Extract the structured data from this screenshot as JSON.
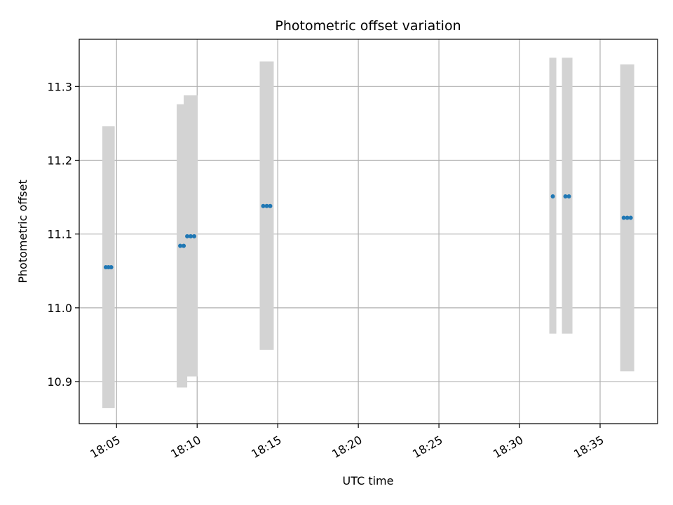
{
  "chart_data": {
    "type": "scatter",
    "title": "Photometric offset variation",
    "xlabel": "UTC time",
    "ylabel": "Photometric offset",
    "x_unit": "time (HH:MM UTC)",
    "xlim": [
      "18:02:41",
      "18:38:34"
    ],
    "ylim": [
      10.843,
      11.364
    ],
    "xticks": [
      "18:05",
      "18:10",
      "18:15",
      "18:20",
      "18:25",
      "18:30",
      "18:35"
    ],
    "yticks": [
      10.9,
      11.0,
      11.1,
      11.2,
      11.3
    ],
    "grid": true,
    "colors": {
      "point": "#1f77b4",
      "errorbar": "#d3d3d3",
      "grid": "#b0b0b0"
    },
    "series": [
      {
        "points": [
          {
            "x": "18:04:20",
            "y": 11.055
          },
          {
            "x": "18:04:30",
            "y": 11.055
          },
          {
            "x": "18:04:40",
            "y": 11.055
          }
        ],
        "error_low": 10.864,
        "error_high": 11.246
      },
      {
        "points": [
          {
            "x": "18:08:57",
            "y": 11.084
          },
          {
            "x": "18:09:10",
            "y": 11.084
          }
        ],
        "error_low": 10.892,
        "error_high": 11.276
      },
      {
        "points": [
          {
            "x": "18:09:23",
            "y": 11.097
          },
          {
            "x": "18:09:36",
            "y": 11.097
          },
          {
            "x": "18:09:49",
            "y": 11.097
          }
        ],
        "error_low": 10.907,
        "error_high": 11.288
      },
      {
        "points": [
          {
            "x": "18:14:06",
            "y": 11.138
          },
          {
            "x": "18:14:19",
            "y": 11.138
          },
          {
            "x": "18:14:32",
            "y": 11.138
          }
        ],
        "error_low": 10.943,
        "error_high": 11.334
      },
      {
        "points": [
          {
            "x": "18:32:04",
            "y": 11.151
          }
        ],
        "error_low": 10.965,
        "error_high": 11.339
      },
      {
        "points": [
          {
            "x": "18:32:51",
            "y": 11.151
          },
          {
            "x": "18:33:04",
            "y": 11.151
          }
        ],
        "error_low": 10.965,
        "error_high": 11.339
      },
      {
        "points": [
          {
            "x": "18:36:28",
            "y": 11.122
          },
          {
            "x": "18:36:41",
            "y": 11.122
          },
          {
            "x": "18:36:54",
            "y": 11.122
          }
        ],
        "error_low": 10.914,
        "error_high": 11.33
      }
    ]
  }
}
